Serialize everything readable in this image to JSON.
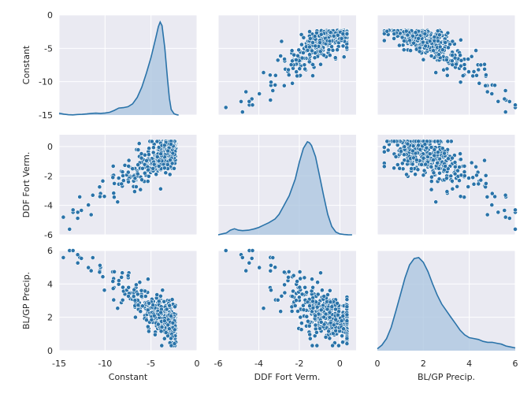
{
  "chart_data": {
    "type": "pairplot",
    "variables": [
      "Constant",
      "DDF Fort Verm.",
      "BL/GP Precip."
    ],
    "ranges": {
      "Constant": [
        -15,
        0
      ],
      "DDF Fort Verm.": [
        -6,
        0.8
      ],
      "BL/GP Precip.": [
        0,
        6
      ]
    },
    "ticks": {
      "Constant": {
        "x": [
          "-15",
          "-10",
          "-5",
          "0"
        ],
        "y": [
          "-15",
          "-10",
          "-5",
          "0"
        ]
      },
      "DDF Fort Verm.": {
        "x": [
          "-6",
          "-4",
          "-2",
          "0"
        ],
        "y": [
          "-6",
          "-4",
          "-2",
          "0"
        ]
      },
      "BL/GP Precip.": {
        "x": [
          "0",
          "2",
          "4",
          "6"
        ],
        "y": [
          "0",
          "2",
          "4",
          "6"
        ]
      }
    },
    "tick_values": {
      "Constant": [
        -15,
        -10,
        -5,
        0
      ],
      "DDF Fort Verm.": [
        -6,
        -4,
        -2,
        0
      ],
      "BL/GP Precip.": [
        0,
        2,
        4,
        6
      ]
    },
    "diag_kde": {
      "Constant": {
        "x": [
          -15,
          -14.5,
          -14,
          -13.5,
          -13,
          -12.5,
          -12,
          -11.5,
          -11,
          -10.5,
          -10,
          -9.5,
          -9,
          -8.5,
          -8,
          -7.5,
          -7,
          -6.5,
          -6,
          -5.5,
          -5,
          -4.5,
          -4.2,
          -4,
          -3.8,
          -3.5,
          -3.2,
          -3,
          -2.8,
          -2.5,
          -2.2,
          -2
        ],
        "y": [
          0.02,
          0.01,
          0.003,
          0.002,
          0.006,
          0.008,
          0.012,
          0.018,
          0.02,
          0.018,
          0.022,
          0.03,
          0.05,
          0.075,
          0.08,
          0.09,
          0.12,
          0.19,
          0.3,
          0.45,
          0.62,
          0.82,
          0.95,
          1.0,
          0.96,
          0.72,
          0.38,
          0.18,
          0.06,
          0.015,
          0.003,
          0.0
        ]
      },
      "DDF Fort Verm.": {
        "x": [
          -6,
          -5.8,
          -5.6,
          -5.4,
          -5.2,
          -5,
          -4.8,
          -4.5,
          -4.2,
          -4,
          -3.8,
          -3.5,
          -3.2,
          -3,
          -2.8,
          -2.5,
          -2.2,
          -2,
          -1.8,
          -1.6,
          -1.5,
          -1.4,
          -1.2,
          -1,
          -0.8,
          -0.6,
          -0.4,
          -0.2,
          0,
          0.2,
          0.4,
          0.6
        ],
        "y": [
          0.0,
          0.01,
          0.02,
          0.05,
          0.065,
          0.05,
          0.045,
          0.05,
          0.065,
          0.08,
          0.1,
          0.13,
          0.17,
          0.22,
          0.3,
          0.42,
          0.6,
          0.78,
          0.93,
          1.0,
          0.99,
          0.96,
          0.84,
          0.63,
          0.42,
          0.22,
          0.09,
          0.03,
          0.01,
          0.003,
          0.001,
          0.0
        ]
      },
      "BL/GP Precip.": {
        "x": [
          0,
          0.2,
          0.4,
          0.6,
          0.8,
          1.0,
          1.2,
          1.4,
          1.6,
          1.8,
          2.0,
          2.2,
          2.4,
          2.6,
          2.8,
          3.0,
          3.2,
          3.4,
          3.6,
          3.8,
          4.0,
          4.2,
          4.4,
          4.6,
          4.8,
          5.0,
          5.2,
          5.4,
          5.6,
          5.8,
          6.0
        ],
        "y": [
          0.02,
          0.06,
          0.13,
          0.25,
          0.42,
          0.6,
          0.78,
          0.92,
          0.99,
          1.0,
          0.95,
          0.85,
          0.72,
          0.6,
          0.5,
          0.43,
          0.36,
          0.29,
          0.22,
          0.17,
          0.14,
          0.13,
          0.12,
          0.1,
          0.09,
          0.09,
          0.08,
          0.07,
          0.05,
          0.04,
          0.03
        ]
      }
    },
    "scatter_trend": {
      "DDF_vs_Constant": {
        "x_range": [
          -9.8,
          -2.2
        ],
        "slope": 0.4,
        "intercept": 0.4,
        "noise_sd": 0.85
      },
      "Precip_vs_Constant": {
        "x_range": [
          -12,
          -2.3
        ],
        "slope": -0.42,
        "intercept": 0.3,
        "noise_sd": 0.55
      }
    },
    "point_color": "#2a73a9",
    "fill_color": "#a9c4df",
    "background_color": "#eaeaf2",
    "grid_color": "#ffffff",
    "grid": true,
    "legend": "none",
    "xlabels": [
      "Constant",
      "DDF Fort Verm.",
      "BL/GP Precip."
    ],
    "ylabels": [
      "Constant",
      "DDF Fort Verm.",
      "BL/GP Precip."
    ]
  }
}
